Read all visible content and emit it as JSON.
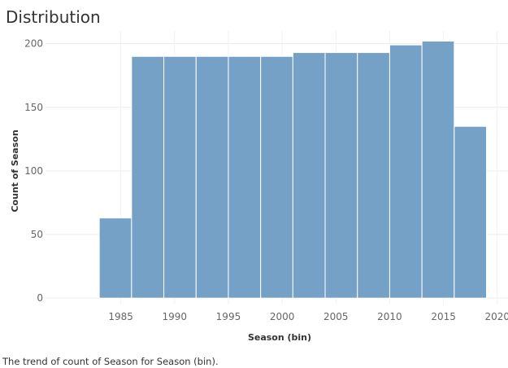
{
  "chart_data": {
    "type": "bar",
    "title": "Distribution",
    "caption": "The trend of count of Season for Season (bin).",
    "xlabel": "Season (bin)",
    "ylabel": "Count of Season",
    "xlim": [
      1978,
      2021
    ],
    "ylim": [
      -5,
      210
    ],
    "x_ticks": [
      1985,
      1990,
      1995,
      2000,
      2005,
      2010,
      2015,
      2020
    ],
    "y_ticks": [
      0,
      50,
      100,
      150,
      200
    ],
    "bin_width": 3,
    "bins": [
      {
        "start": 1983,
        "value": 63
      },
      {
        "start": 1986,
        "value": 190
      },
      {
        "start": 1989,
        "value": 190
      },
      {
        "start": 1992,
        "value": 190
      },
      {
        "start": 1995,
        "value": 190
      },
      {
        "start": 1998,
        "value": 190
      },
      {
        "start": 2001,
        "value": 193
      },
      {
        "start": 2004,
        "value": 193
      },
      {
        "start": 2007,
        "value": 193
      },
      {
        "start": 2010,
        "value": 199
      },
      {
        "start": 2013,
        "value": 202
      },
      {
        "start": 2016,
        "value": 135
      }
    ],
    "bar_color": "#75a1c7",
    "grid": true
  }
}
